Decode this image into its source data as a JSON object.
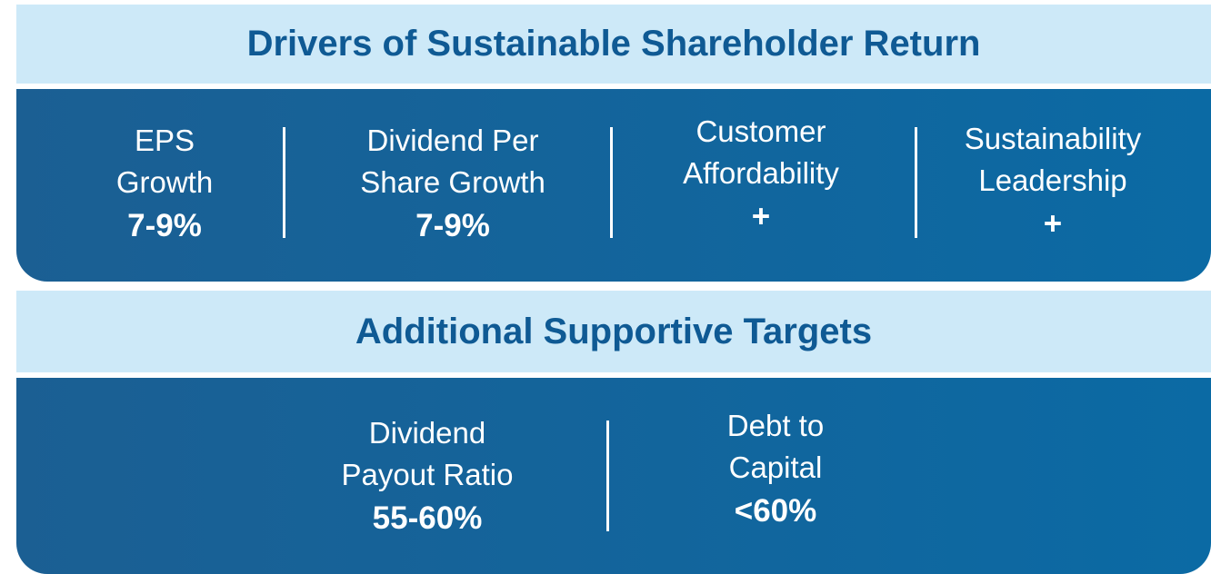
{
  "sections": [
    {
      "title": "Drivers of Sustainable Shareholder Return",
      "items": [
        {
          "label_lines": [
            "EPS",
            "Growth"
          ],
          "value": "7-9%"
        },
        {
          "label_lines": [
            "Dividend Per",
            "Share Growth"
          ],
          "value": "7-9%"
        },
        {
          "label_lines": [
            "Customer",
            "Affordability"
          ],
          "value": "+"
        },
        {
          "label_lines": [
            "Sustainability",
            "Leadership"
          ],
          "value": "+"
        }
      ]
    },
    {
      "title": "Additional Supportive Targets",
      "items": [
        {
          "label_lines": [
            "Dividend",
            "Payout Ratio"
          ],
          "value": "55-60%"
        },
        {
          "label_lines": [
            "Debt to",
            "Capital"
          ],
          "value": "<60%"
        }
      ]
    }
  ]
}
